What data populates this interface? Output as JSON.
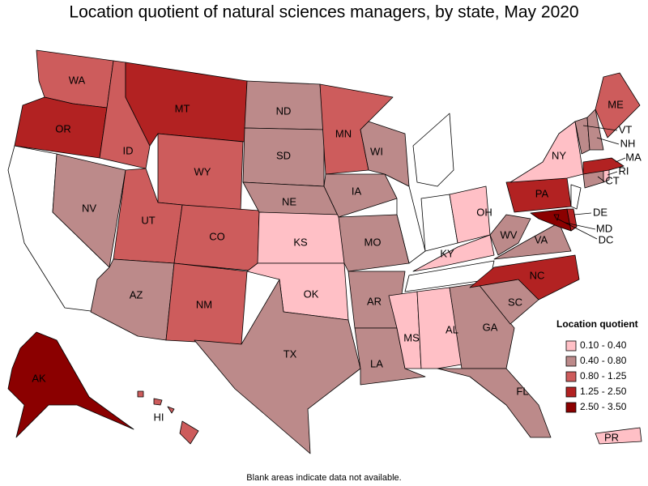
{
  "title": "Location quotient of natural sciences managers, by state, May 2020",
  "footnote": "Blank areas indicate data not available.",
  "legend": {
    "title": "Location quotient",
    "items": [
      {
        "label": "0.10 - 0.40",
        "color": "#ffc0c6"
      },
      {
        "label": "0.40 - 0.80",
        "color": "#bc8a8a"
      },
      {
        "label": "0.80 - 1.25",
        "color": "#cd5c5c"
      },
      {
        "label": "1.25 - 2.50",
        "color": "#b22222"
      },
      {
        "label": "2.50 - 3.50",
        "color": "#8b0000"
      }
    ]
  },
  "states": [
    {
      "abbr": "WA",
      "color": "#cd5c5c"
    },
    {
      "abbr": "OR",
      "color": "#b22222"
    },
    {
      "abbr": "NV",
      "color": "#bc8a8a"
    },
    {
      "abbr": "ID",
      "color": "#cd5c5c"
    },
    {
      "abbr": "MT",
      "color": "#b22222"
    },
    {
      "abbr": "WY",
      "color": "#cd5c5c"
    },
    {
      "abbr": "UT",
      "color": "#cd5c5c"
    },
    {
      "abbr": "CO",
      "color": "#cd5c5c"
    },
    {
      "abbr": "AZ",
      "color": "#bc8a8a"
    },
    {
      "abbr": "NM",
      "color": "#cd5c5c"
    },
    {
      "abbr": "ND",
      "color": "#bc8a8a"
    },
    {
      "abbr": "SD",
      "color": "#bc8a8a"
    },
    {
      "abbr": "NE",
      "color": "#bc8a8a"
    },
    {
      "abbr": "KS",
      "color": "#ffc0c6"
    },
    {
      "abbr": "OK",
      "color": "#ffc0c6"
    },
    {
      "abbr": "TX",
      "color": "#bc8a8a"
    },
    {
      "abbr": "MN",
      "color": "#cd5c5c"
    },
    {
      "abbr": "IA",
      "color": "#bc8a8a"
    },
    {
      "abbr": "MO",
      "color": "#bc8a8a"
    },
    {
      "abbr": "AR",
      "color": "#bc8a8a"
    },
    {
      "abbr": "LA",
      "color": "#bc8a8a"
    },
    {
      "abbr": "WI",
      "color": "#bc8a8a"
    },
    {
      "abbr": "OH",
      "color": "#ffc0c6"
    },
    {
      "abbr": "KY",
      "color": "#ffc0c6"
    },
    {
      "abbr": "MS",
      "color": "#ffc0c6"
    },
    {
      "abbr": "AL",
      "color": "#ffc0c6"
    },
    {
      "abbr": "GA",
      "color": "#bc8a8a"
    },
    {
      "abbr": "FL",
      "color": "#bc8a8a"
    },
    {
      "abbr": "SC",
      "color": "#bc8a8a"
    },
    {
      "abbr": "NC",
      "color": "#b22222"
    },
    {
      "abbr": "VA",
      "color": "#bc8a8a"
    },
    {
      "abbr": "WV",
      "color": "#bc8a8a"
    },
    {
      "abbr": "PA",
      "color": "#b22222"
    },
    {
      "abbr": "NY",
      "color": "#ffc0c6"
    },
    {
      "abbr": "MD",
      "color": "#8b0000"
    },
    {
      "abbr": "DE",
      "color": "#b22222"
    },
    {
      "abbr": "DC",
      "color": "#8b0000"
    },
    {
      "abbr": "CT",
      "color": "#bc8a8a"
    },
    {
      "abbr": "RI",
      "color": "#ffc0c6"
    },
    {
      "abbr": "MA",
      "color": "#b22222"
    },
    {
      "abbr": "VT",
      "color": "#bc8a8a"
    },
    {
      "abbr": "NH",
      "color": "#bc8a8a"
    },
    {
      "abbr": "ME",
      "color": "#cd5c5c"
    },
    {
      "abbr": "AK",
      "color": "#8b0000"
    },
    {
      "abbr": "HI",
      "color": "#cd5c5c"
    },
    {
      "abbr": "PR",
      "color": "#ffc0c6"
    }
  ]
}
